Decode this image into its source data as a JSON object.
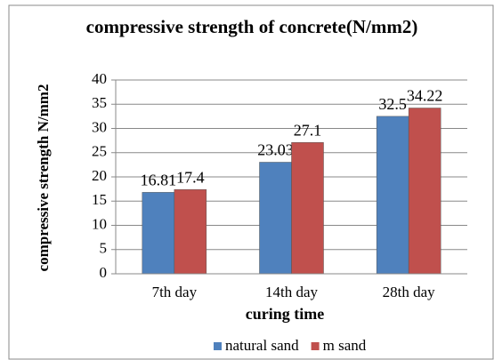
{
  "chart_data": {
    "type": "bar",
    "title": "compressive strength of concrete(N/mm2)",
    "y_label": "compressive strength N/mm2",
    "x_label": "curing time",
    "categories": [
      "7th day",
      "14th day",
      "28th day"
    ],
    "series": [
      {
        "name": "natural sand",
        "color": "#4f81bd",
        "values": [
          16.81,
          23.03,
          32.5
        ]
      },
      {
        "name": "m sand",
        "color": "#c0504d",
        "values": [
          17.4,
          27.1,
          34.22
        ]
      }
    ],
    "ylim": [
      0,
      40
    ],
    "yticks": [
      0,
      5,
      10,
      15,
      20,
      25,
      30,
      35,
      40
    ],
    "grid": true,
    "legend": "bottom"
  }
}
